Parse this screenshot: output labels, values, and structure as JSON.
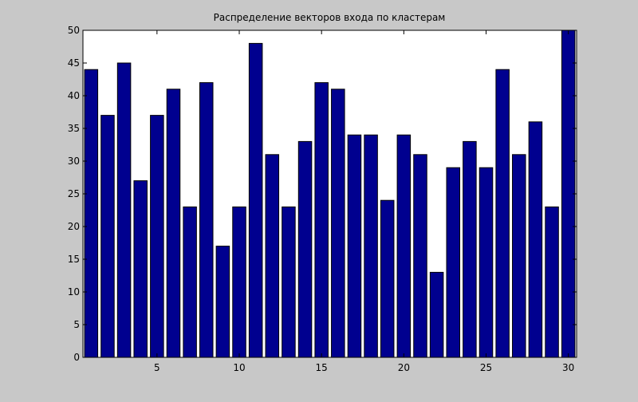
{
  "figure": {
    "background": "#c8c8c8",
    "axes_background": "#ffffff",
    "bar_color": "#00008f",
    "bar_edge": "#000000"
  },
  "chart_data": {
    "type": "bar",
    "title": "Распределение векторов входа по кластерам",
    "xlabel": "",
    "ylabel": "",
    "categories": [
      1,
      2,
      3,
      4,
      5,
      6,
      7,
      8,
      9,
      10,
      11,
      12,
      13,
      14,
      15,
      16,
      17,
      18,
      19,
      20,
      21,
      22,
      23,
      24,
      25,
      26,
      27,
      28,
      29,
      30
    ],
    "values": [
      44,
      37,
      45,
      27,
      37,
      41,
      23,
      42,
      17,
      23,
      48,
      31,
      23,
      33,
      42,
      41,
      34,
      34,
      24,
      34,
      31,
      13,
      29,
      33,
      29,
      44,
      31,
      36,
      23,
      50
    ],
    "xlim": [
      0.5,
      30.5
    ],
    "ylim": [
      0,
      50
    ],
    "xticks": [
      5,
      10,
      15,
      20,
      25,
      30
    ],
    "yticks": [
      0,
      5,
      10,
      15,
      20,
      25,
      30,
      35,
      40,
      45,
      50
    ],
    "grid": false,
    "legend": "none"
  }
}
